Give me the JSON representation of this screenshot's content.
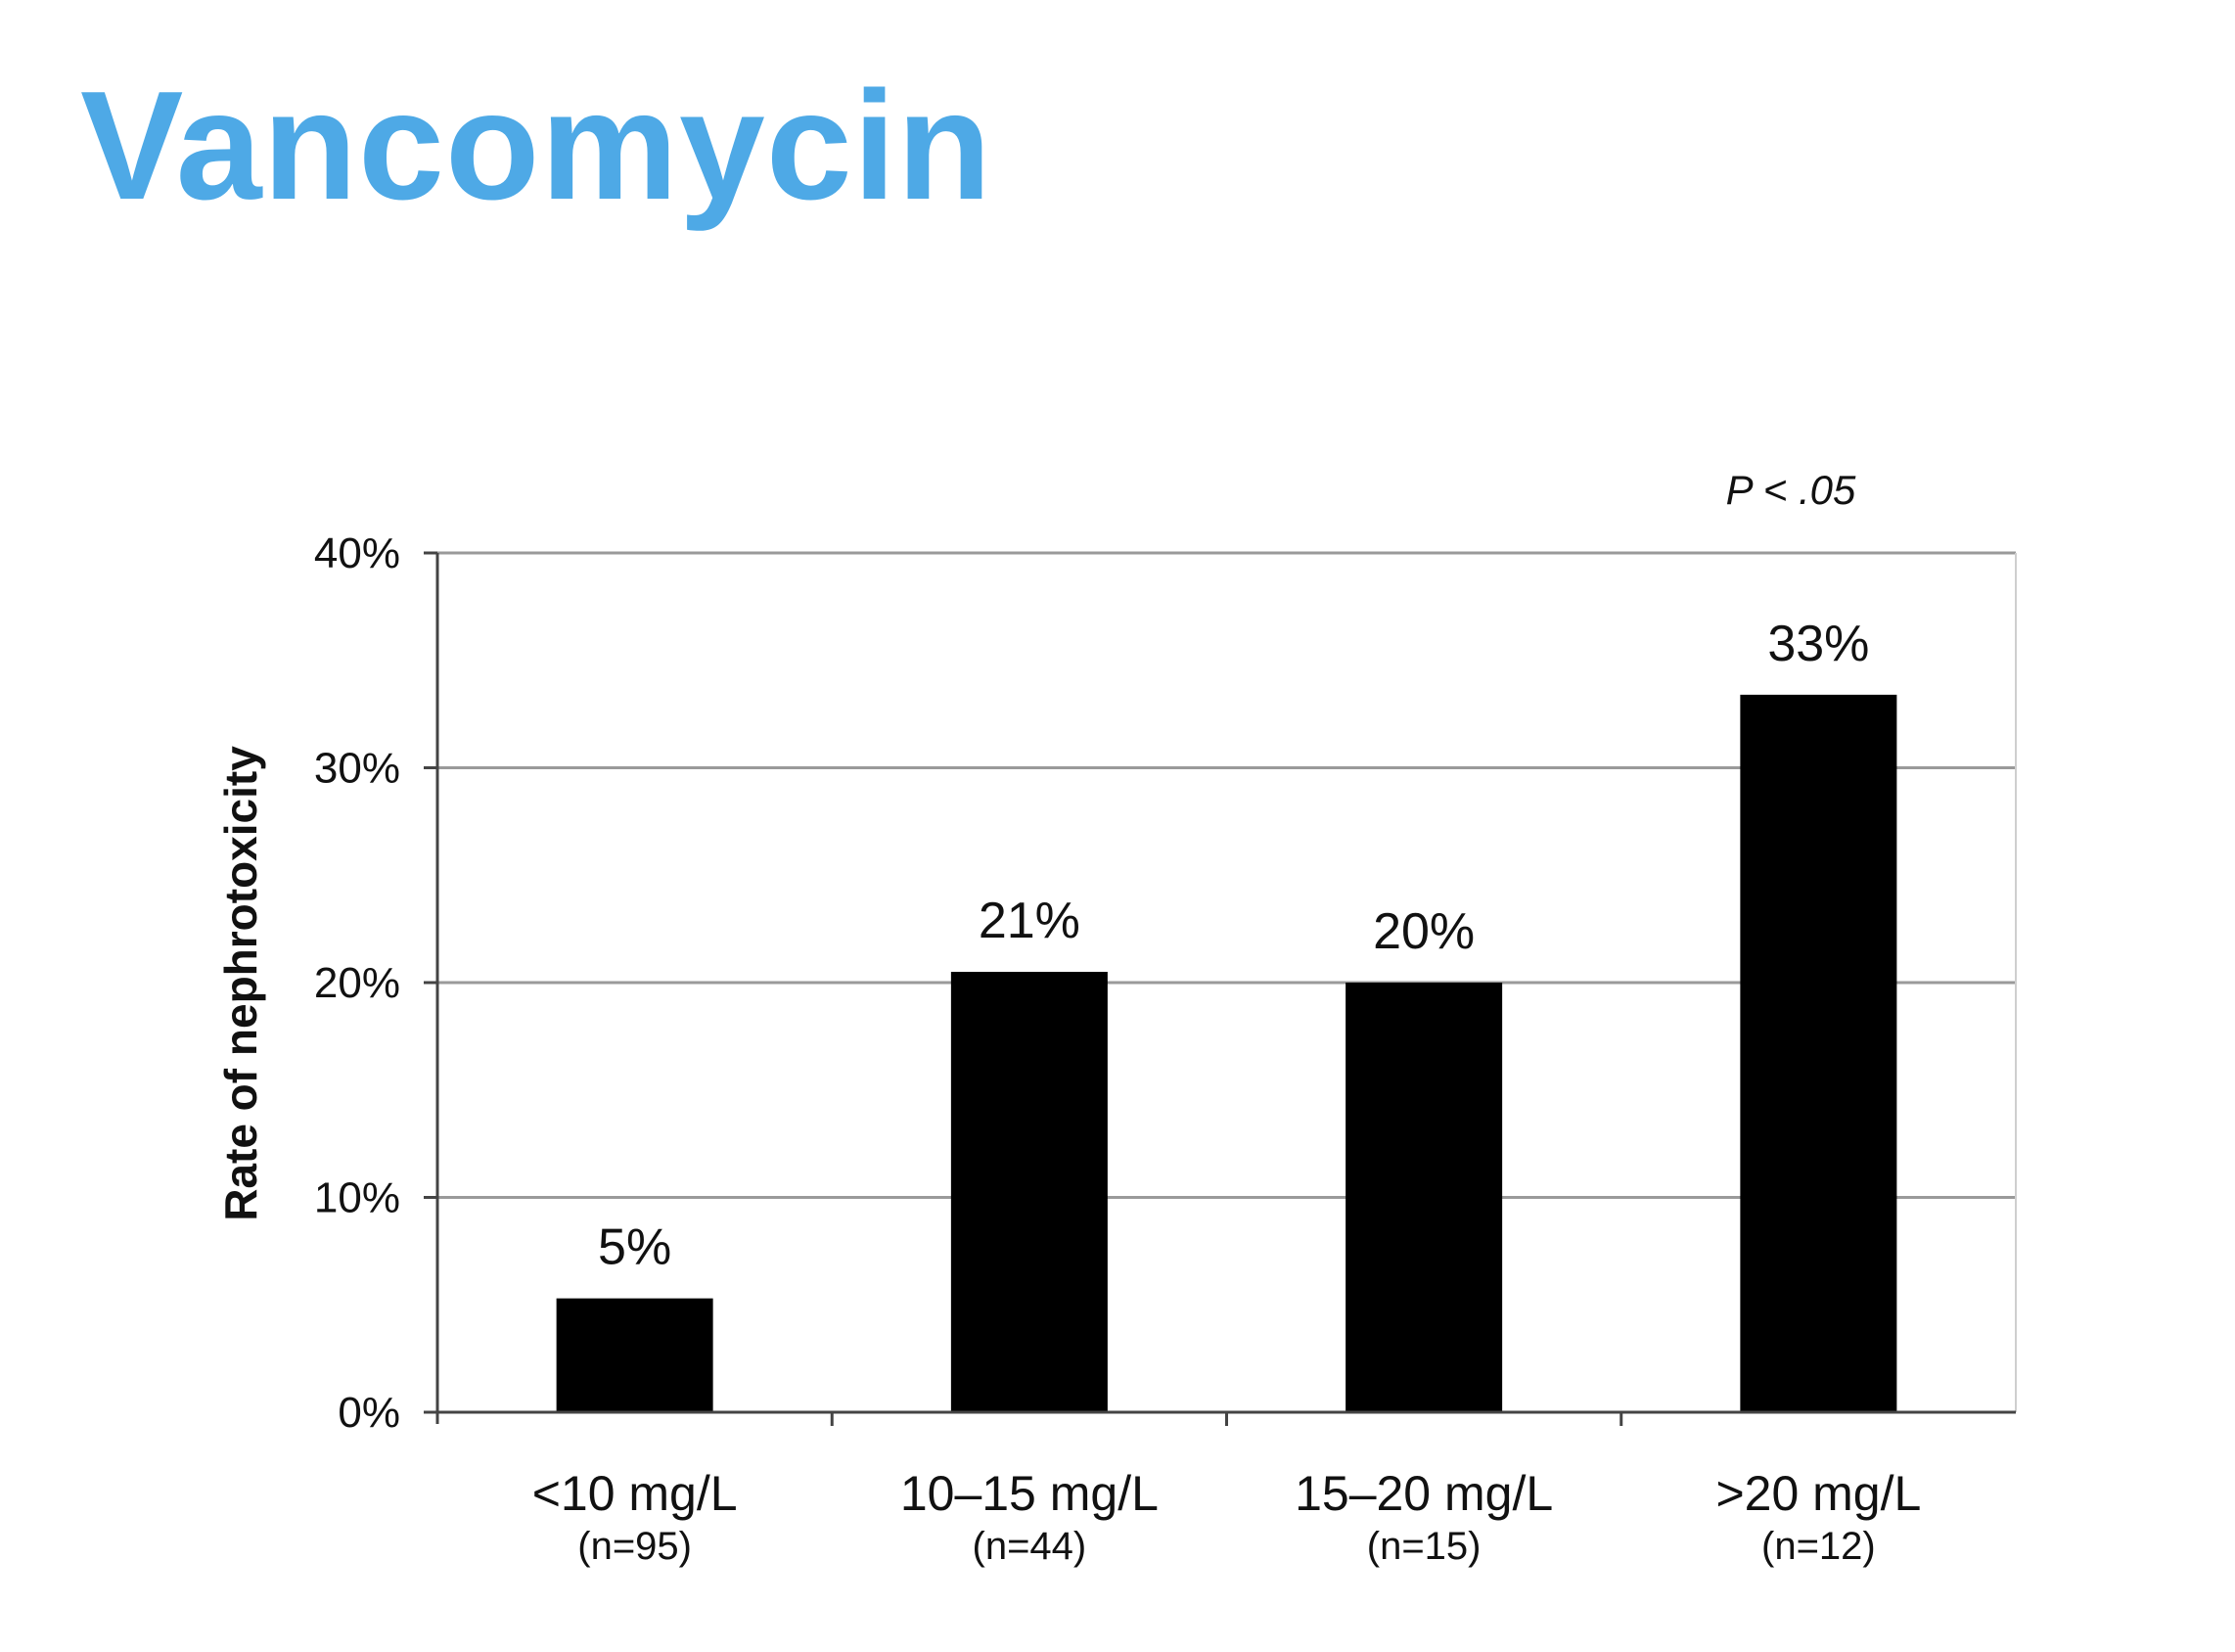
{
  "slide": {
    "title": "Vancomycin"
  },
  "chart_data": {
    "type": "bar",
    "title": "",
    "xlabel": "",
    "ylabel": "Rate of nephrotoxicity",
    "annotation": "P < .05",
    "categories": [
      "<10 mg/L",
      "10–15 mg/L",
      "15–20 mg/L",
      ">20 mg/L"
    ],
    "sample_sizes": [
      "(n=95)",
      "(n=44)",
      "(n=15)",
      "(n=12)"
    ],
    "values": [
      5.3,
      20.5,
      20,
      33.4
    ],
    "data_labels": [
      "5%",
      "21%",
      "20%",
      "33%"
    ],
    "ylim": [
      0,
      40
    ],
    "yticks": [
      0,
      10,
      20,
      30,
      40
    ],
    "ytick_labels": [
      "0%",
      "10%",
      "20%",
      "30%",
      "40%"
    ],
    "grid": true,
    "legend": "none",
    "colors": {
      "bar": "#000000",
      "grid": "#9a9a9a",
      "axis": "#444444",
      "title": "#4ea9e6"
    }
  }
}
